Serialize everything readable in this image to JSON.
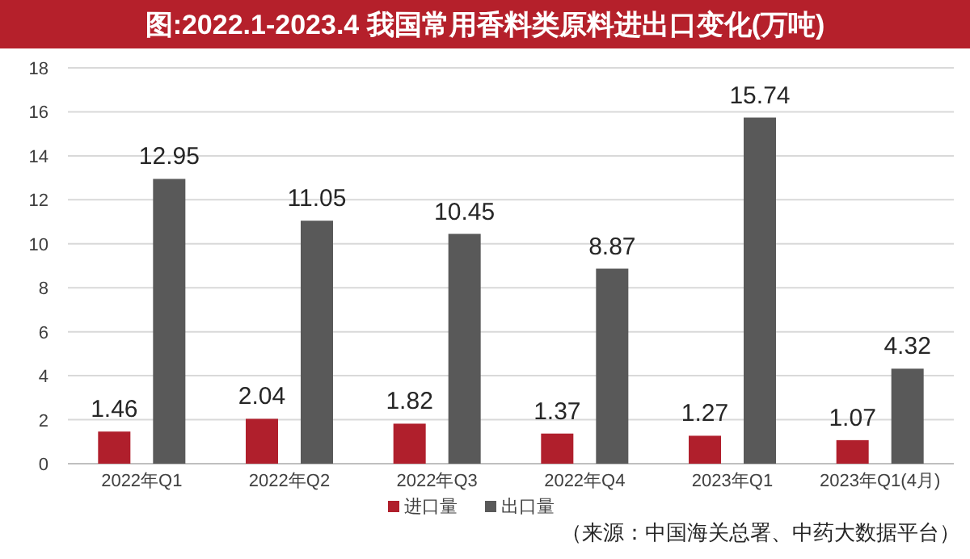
{
  "chart_data": {
    "type": "bar",
    "title": "图:2022.1-2023.4 我国常用香料类原料进出口变化(万吨)",
    "categories": [
      "2022年Q1",
      "2022年Q2",
      "2022年Q3",
      "2022年Q4",
      "2023年Q1",
      "2023年Q1(4月)"
    ],
    "series": [
      {
        "name": "进口量",
        "color": "#b01f2c",
        "values": [
          1.46,
          2.04,
          1.82,
          1.37,
          1.27,
          1.07
        ]
      },
      {
        "name": "出口量",
        "color": "#595959",
        "values": [
          12.95,
          11.05,
          10.45,
          8.87,
          15.74,
          4.32
        ]
      }
    ],
    "ylim": [
      0,
      18
    ],
    "yticks": [
      0,
      2,
      4,
      6,
      8,
      10,
      12,
      14,
      16,
      18
    ],
    "grid": "y",
    "legend": "bottom",
    "data_labels": true,
    "annotations": [
      "（来源：中国海关总署、中药大数据平台）"
    ]
  }
}
